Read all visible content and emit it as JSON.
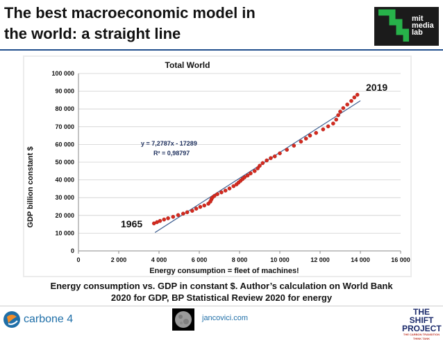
{
  "slide": {
    "title_line1": "The best macroeconomic model in",
    "title_line2": "the world: a straight line",
    "caption_line1": "Energy consumption vs. GDP in constant $. Author’s calculation on World Bank",
    "caption_line2": "2020 for GDP, BP Statistical Review 2020 for energy"
  },
  "logos": {
    "mit": [
      "mit",
      "media",
      "lab"
    ],
    "carbone": "carbone 4",
    "site": "jancovici.com",
    "shift_line1": "THE SHIFT",
    "shift_line2": "PROJECT",
    "shift_tagline": "THE CARBON TRANSITION THINK TANK"
  },
  "annotations": {
    "start_year": "1965",
    "end_year": "2019"
  },
  "colors": {
    "points": "#d42a1f",
    "trendline": "#3b5c8f",
    "title_rule": "#1f4e8c"
  },
  "chart_data": {
    "type": "scatter",
    "title": "Total World",
    "xlabel": "Energy consumption = fleet of machines!",
    "ylabel": "GDP billion constant $",
    "xlim": [
      0,
      16000
    ],
    "ylim": [
      0,
      100000
    ],
    "xticks": [
      0,
      2000,
      4000,
      6000,
      8000,
      10000,
      12000,
      14000,
      16000
    ],
    "xtick_labels": [
      "0",
      "2 000",
      "4 000",
      "6 000",
      "8 000",
      "10 000",
      "12 000",
      "14 000",
      "16 000"
    ],
    "yticks": [
      0,
      10000,
      20000,
      30000,
      40000,
      50000,
      60000,
      70000,
      80000,
      90000,
      100000
    ],
    "ytick_labels": [
      "0",
      "10 000",
      "20 000",
      "30 000",
      "40 000",
      "50 000",
      "60 000",
      "70 000",
      "80 000",
      "90 000",
      "100 000"
    ],
    "grid": true,
    "legend": "none",
    "trendline": {
      "equation": "y = 7,2787x - 17289",
      "r_squared": "R² = 0,98797",
      "slope": 7.2787,
      "intercept": -17289,
      "x_range": [
        3800,
        14000
      ]
    },
    "series": [
      {
        "name": "World 1965-2019",
        "points": [
          [
            3750,
            15500
          ],
          [
            3900,
            16200
          ],
          [
            4050,
            16900
          ],
          [
            4250,
            17700
          ],
          [
            4450,
            18400
          ],
          [
            4700,
            19200
          ],
          [
            4950,
            20200
          ],
          [
            5200,
            21000
          ],
          [
            5400,
            21800
          ],
          [
            5650,
            22600
          ],
          [
            5850,
            23800
          ],
          [
            6050,
            24800
          ],
          [
            6250,
            25600
          ],
          [
            6450,
            26600
          ],
          [
            6550,
            27800
          ],
          [
            6600,
            29000
          ],
          [
            6650,
            30000
          ],
          [
            6750,
            31000
          ],
          [
            6900,
            32000
          ],
          [
            7100,
            33000
          ],
          [
            7300,
            34000
          ],
          [
            7500,
            35200
          ],
          [
            7700,
            36500
          ],
          [
            7850,
            37500
          ],
          [
            7950,
            38500
          ],
          [
            8050,
            39500
          ],
          [
            8150,
            40500
          ],
          [
            8250,
            41500
          ],
          [
            8400,
            42500
          ],
          [
            8550,
            43700
          ],
          [
            8750,
            45000
          ],
          [
            8900,
            46500
          ],
          [
            9000,
            48000
          ],
          [
            9150,
            49500
          ],
          [
            9350,
            51000
          ],
          [
            9550,
            52300
          ],
          [
            9750,
            53300
          ],
          [
            10000,
            55000
          ],
          [
            10350,
            57000
          ],
          [
            10700,
            59300
          ],
          [
            11050,
            61600
          ],
          [
            11300,
            63300
          ],
          [
            11500,
            65000
          ],
          [
            11800,
            66500
          ],
          [
            12150,
            68500
          ],
          [
            12400,
            70200
          ],
          [
            12650,
            71800
          ],
          [
            12800,
            74000
          ],
          [
            12900,
            76500
          ],
          [
            13000,
            78500
          ],
          [
            13150,
            80500
          ],
          [
            13350,
            82500
          ],
          [
            13550,
            84500
          ],
          [
            13700,
            86500
          ],
          [
            13850,
            88000
          ]
        ]
      }
    ]
  }
}
